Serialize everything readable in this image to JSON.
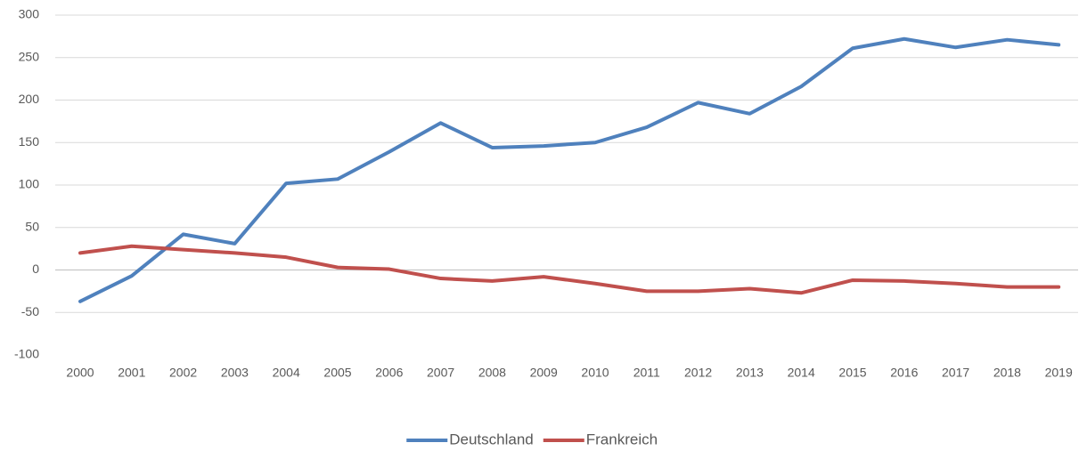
{
  "chart_data": {
    "type": "line",
    "categories": [
      "2000",
      "2001",
      "2002",
      "2003",
      "2004",
      "2005",
      "2006",
      "2007",
      "2008",
      "2009",
      "2010",
      "2011",
      "2012",
      "2013",
      "2014",
      "2015",
      "2016",
      "2017",
      "2018",
      "2019"
    ],
    "series": [
      {
        "name": "Deutschland",
        "color": "#4f81bd",
        "values": [
          -37,
          -7,
          42,
          31,
          102,
          107,
          139,
          173,
          144,
          146,
          150,
          168,
          197,
          184,
          216,
          261,
          272,
          262,
          271,
          265
        ]
      },
      {
        "name": "Frankreich",
        "color": "#c0504d",
        "values": [
          20,
          28,
          24,
          20,
          15,
          3,
          1,
          -10,
          -13,
          -8,
          -16,
          -25,
          -25,
          -22,
          -27,
          -12,
          -13,
          -16,
          -20,
          -20
        ]
      }
    ],
    "ylim": [
      -100,
      300
    ],
    "yticks": [
      -100,
      -50,
      0,
      50,
      100,
      150,
      200,
      250,
      300
    ],
    "grid": true,
    "legend": "bottom"
  }
}
